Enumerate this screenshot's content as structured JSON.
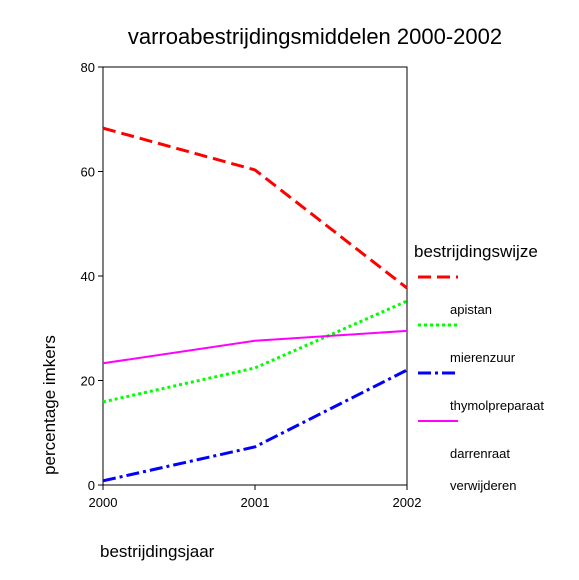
{
  "chart_data": {
    "type": "line",
    "title": "varroabestrijdingsmiddelen 2000-2002",
    "x_label": "bestrijdingsjaar",
    "y_label": "percentage imkers",
    "legend_title": "bestrijdingswijze",
    "x": [
      2000,
      2001,
      2002
    ],
    "xlim": [
      2000,
      2002
    ],
    "xticks": [
      2000,
      2001,
      2002
    ],
    "ylim": [
      0,
      80
    ],
    "yticks": [
      0,
      20,
      40,
      60,
      80
    ],
    "series": [
      {
        "name": "apistan",
        "color": "#ff0000",
        "dash": "13,6",
        "values": [
          68.3,
          60.3,
          37.7
        ]
      },
      {
        "name": "mierenzuur",
        "color": "#00ff00",
        "dash": "3,3",
        "values": [
          15.9,
          22.4,
          35.2
        ]
      },
      {
        "name": "thymolpreparaat",
        "color": "#0000ff",
        "dash": "13,4,3,4",
        "values": [
          0.8,
          7.3,
          22.0
        ]
      },
      {
        "name": "darrenraat verwijderen",
        "color": "#ff00ff",
        "dash": "none",
        "values": [
          23.3,
          27.6,
          29.5
        ]
      }
    ]
  }
}
